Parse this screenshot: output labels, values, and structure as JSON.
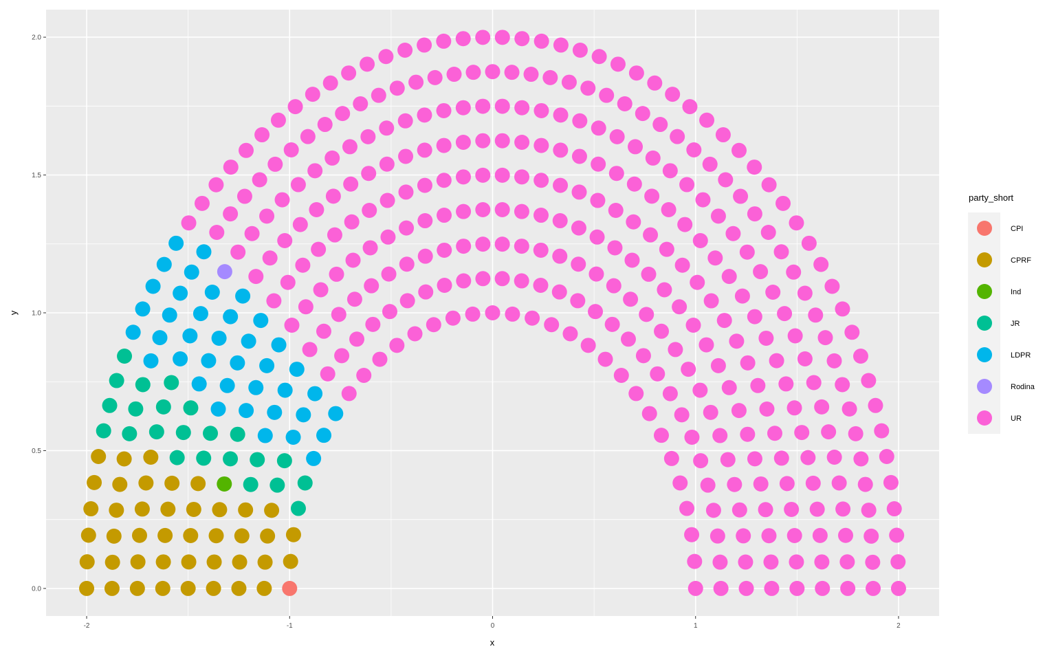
{
  "chart_data": {
    "type": "scatter",
    "title": "",
    "xlabel": "x",
    "ylabel": "y",
    "xlim": [
      -2.2,
      2.2
    ],
    "ylim": [
      -0.1,
      2.1
    ],
    "x_ticks": [
      -2,
      -1,
      0,
      1,
      2
    ],
    "x_tick_labels": [
      "-2",
      "-1",
      "0",
      "1",
      "2"
    ],
    "y_ticks": [
      0.0,
      0.5,
      1.0,
      1.5,
      2.0
    ],
    "y_tick_labels": [
      "0.0",
      "0.5",
      "1.0",
      "1.5",
      "2.0"
    ],
    "grid": true,
    "legend_position": "right",
    "legend_title": "party_short",
    "layout": "parliament hemicycle, 9 concentric rows from radius 1.0 to 2.0, seats filled left to right",
    "total_seats": 450,
    "series": [
      {
        "name": "CPI",
        "seats": 1,
        "color": "#F8766D"
      },
      {
        "name": "CPRF",
        "seats": 42,
        "color": "#C49A00"
      },
      {
        "name": "Ind",
        "seats": 1,
        "color": "#53B400"
      },
      {
        "name": "JR",
        "seats": 23,
        "color": "#00C094"
      },
      {
        "name": "LDPR",
        "seats": 39,
        "color": "#00B6EB"
      },
      {
        "name": "Rodina",
        "seats": 1,
        "color": "#A58AFF"
      },
      {
        "name": "UR",
        "seats": 343,
        "color": "#FB61D7"
      }
    ],
    "legend_order": [
      "CPI",
      "CPRF",
      "Ind",
      "JR",
      "LDPR",
      "Rodina",
      "UR"
    ]
  }
}
